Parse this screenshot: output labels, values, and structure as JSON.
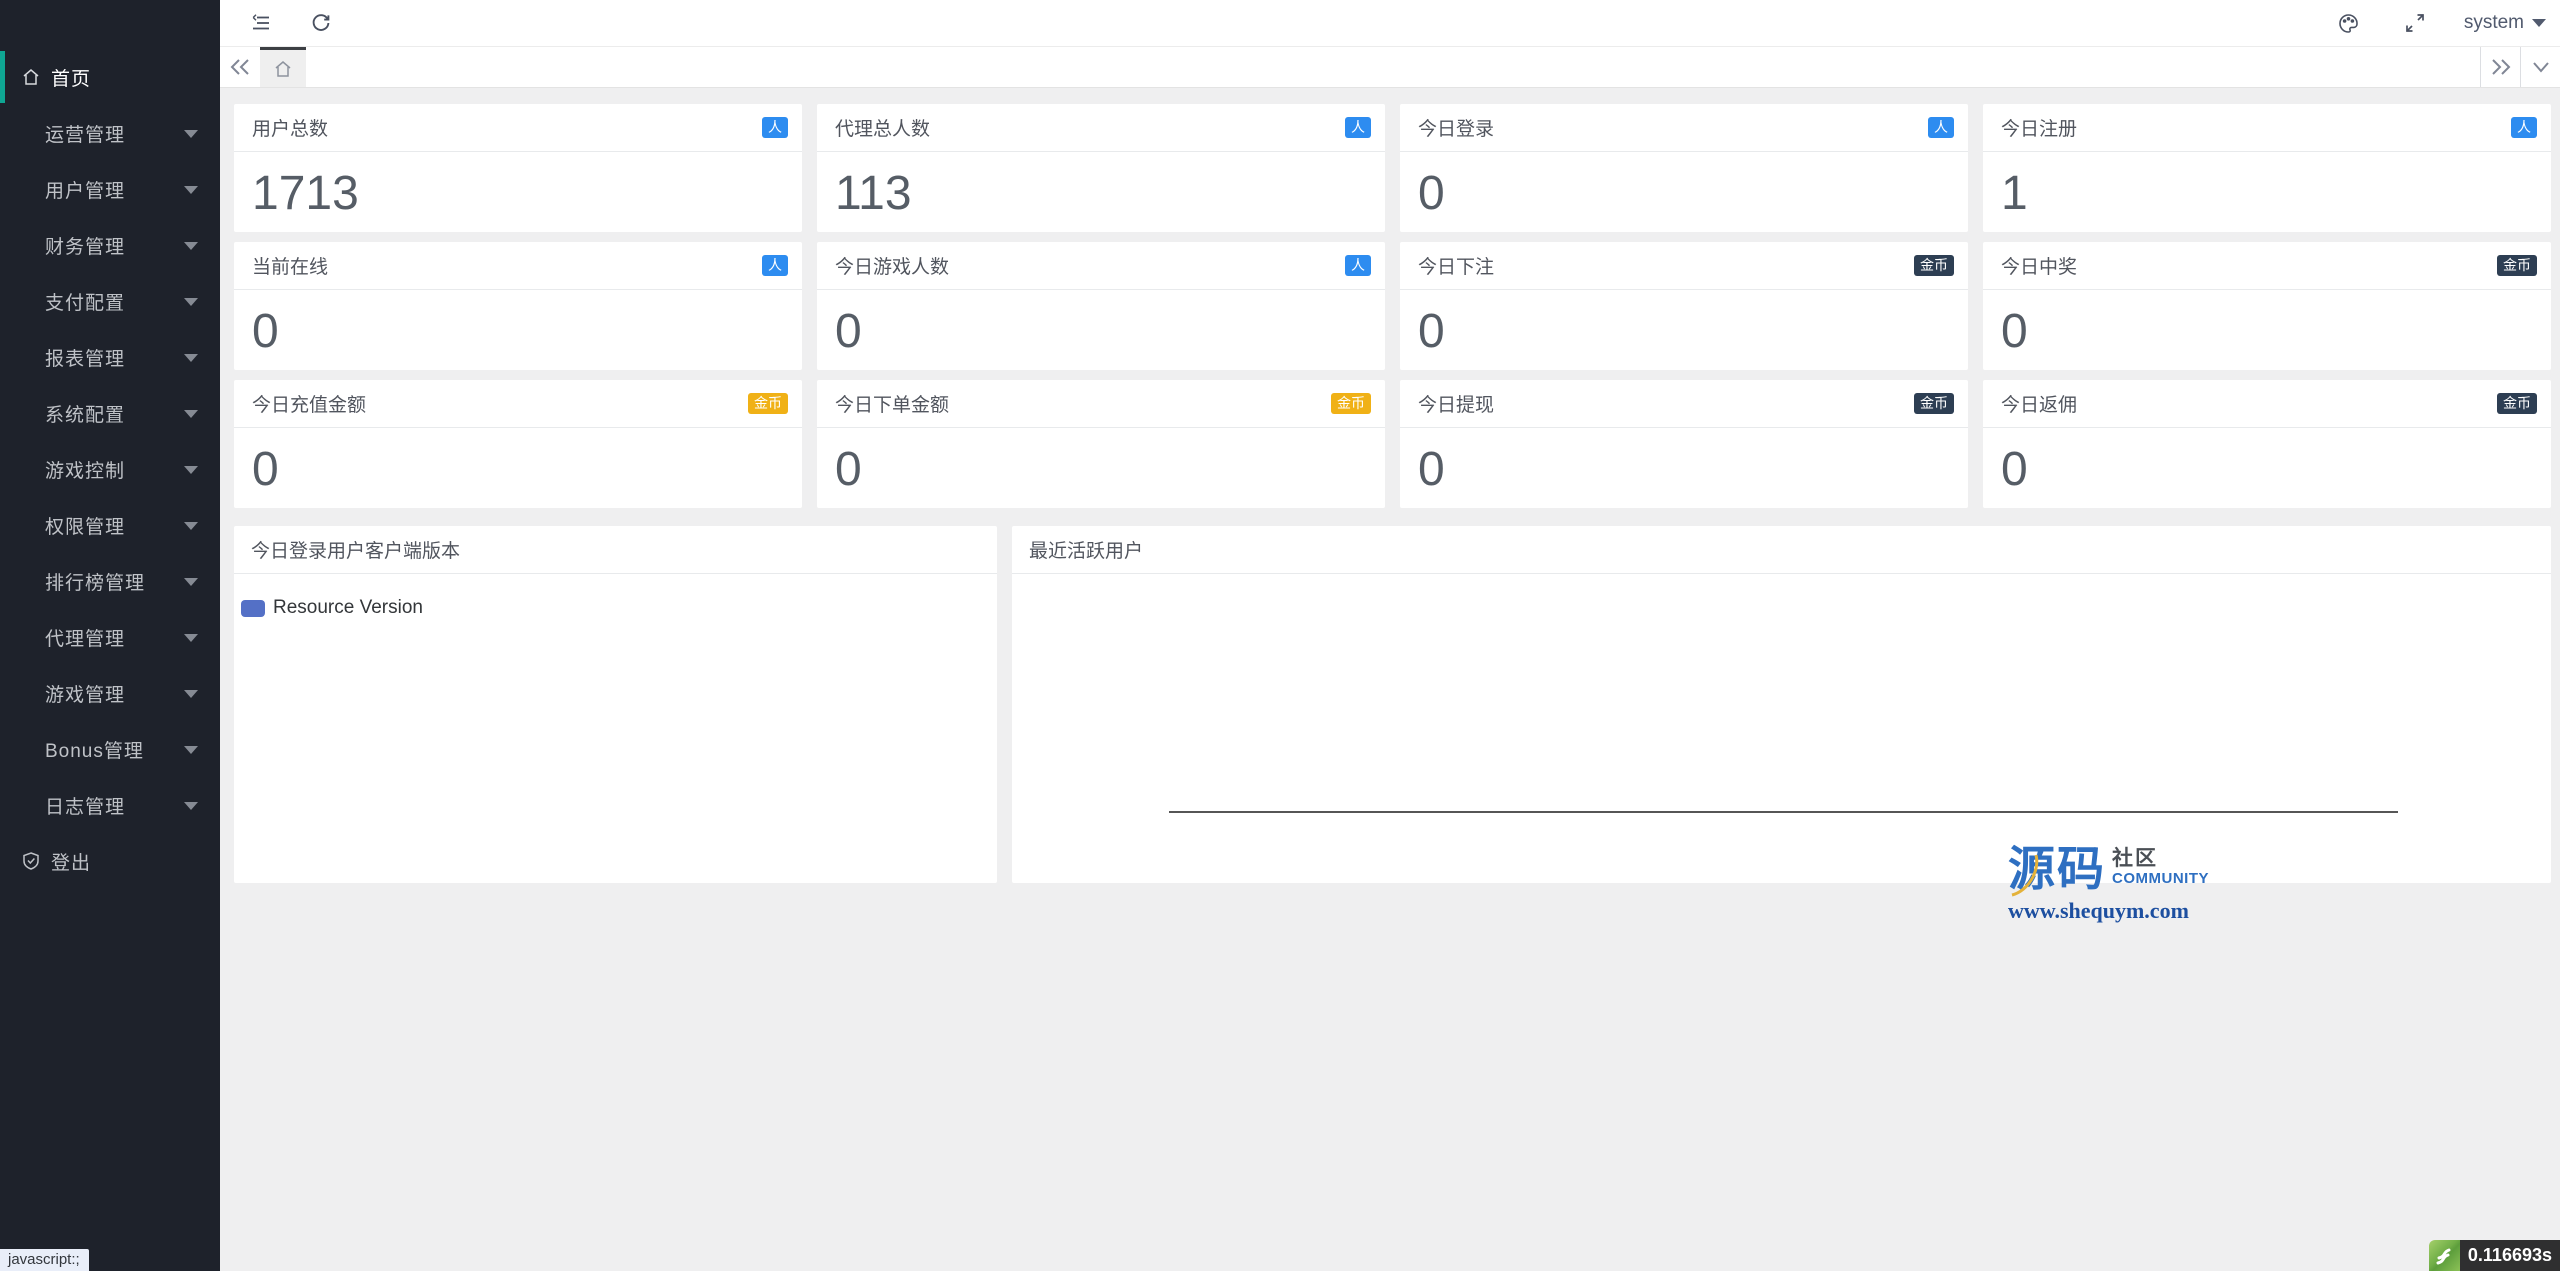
{
  "colors": {
    "sidebar_bg": "#1e222b",
    "active_indicator": "#0fa693",
    "badge_blue": "#2d8cf0",
    "badge_dark": "#2d3e53",
    "badge_gold": "#f0b116",
    "legend_blue": "#5470c6",
    "content_bg": "#efeff0"
  },
  "sidebar": {
    "home": {
      "label": "首页"
    },
    "menus": [
      {
        "label": "运营管理"
      },
      {
        "label": "用户管理"
      },
      {
        "label": "财务管理"
      },
      {
        "label": "支付配置"
      },
      {
        "label": "报表管理"
      },
      {
        "label": "系统配置"
      },
      {
        "label": "游戏控制"
      },
      {
        "label": "权限管理"
      },
      {
        "label": "排行榜管理"
      },
      {
        "label": "代理管理"
      },
      {
        "label": "游戏管理"
      },
      {
        "label": "Bonus管理"
      },
      {
        "label": "日志管理"
      }
    ],
    "logout": {
      "label": "登出"
    }
  },
  "header": {
    "user": "system"
  },
  "stats": [
    {
      "label": "用户总数",
      "value": "1713",
      "badge": "人",
      "badge_type": "blue"
    },
    {
      "label": "代理总人数",
      "value": "113",
      "badge": "人",
      "badge_type": "blue"
    },
    {
      "label": "今日登录",
      "value": "0",
      "badge": "人",
      "badge_type": "blue"
    },
    {
      "label": "今日注册",
      "value": "1",
      "badge": "人",
      "badge_type": "blue"
    },
    {
      "label": "当前在线",
      "value": "0",
      "badge": "人",
      "badge_type": "blue"
    },
    {
      "label": "今日游戏人数",
      "value": "0",
      "badge": "人",
      "badge_type": "blue"
    },
    {
      "label": "今日下注",
      "value": "0",
      "badge": "金币",
      "badge_type": "dark"
    },
    {
      "label": "今日中奖",
      "value": "0",
      "badge": "金币",
      "badge_type": "dark"
    },
    {
      "label": "今日充值金额",
      "value": "0",
      "badge": "金币",
      "badge_type": "gold"
    },
    {
      "label": "今日下单金额",
      "value": "0",
      "badge": "金币",
      "badge_type": "gold"
    },
    {
      "label": "今日提现",
      "value": "0",
      "badge": "金币",
      "badge_type": "dark"
    },
    {
      "label": "今日返佣",
      "value": "0",
      "badge": "金币",
      "badge_type": "dark"
    }
  ],
  "panels": {
    "left": {
      "title": "今日登录用户客户端版本",
      "legend": "Resource Version"
    },
    "right": {
      "title": "最近活跃用户"
    }
  },
  "watermark": {
    "cn_main": "源码",
    "cn_sub": "社区",
    "en_sub": "COMMUNITY",
    "url": "www.shequym.com"
  },
  "status": {
    "link_hint": "javascript:;",
    "load_time": "0.116693s"
  }
}
